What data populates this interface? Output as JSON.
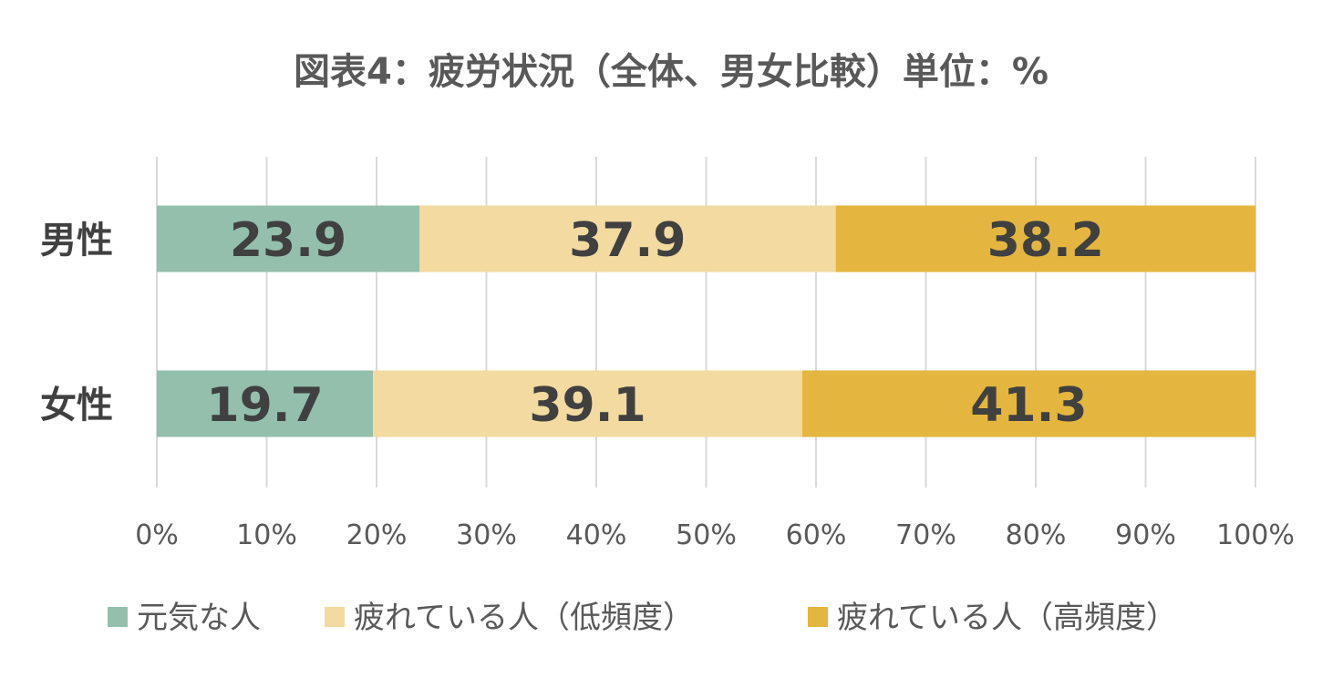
{
  "chart_data": {
    "type": "bar",
    "orientation": "horizontal",
    "stacked": "percent",
    "title": "図表4：疲労状況（全体、男女比較）単位：%",
    "categories": [
      "男性",
      "女性"
    ],
    "series": [
      {
        "name": "元気な人",
        "values": [
          23.9,
          19.7
        ],
        "color": "#93bfac"
      },
      {
        "name": "疲れている人（低頻度）",
        "values": [
          37.9,
          39.1
        ],
        "color": "#f2daa0"
      },
      {
        "name": "疲れている人（高頻度）",
        "values": [
          38.2,
          41.3
        ],
        "color": "#e4b63f"
      }
    ],
    "xlim": [
      0,
      100
    ],
    "xticks": [
      0,
      10,
      20,
      30,
      40,
      50,
      60,
      70,
      80,
      90,
      100
    ],
    "xtick_labels": [
      "0%",
      "10%",
      "20%",
      "30%",
      "40%",
      "50%",
      "60%",
      "70%",
      "80%",
      "90%",
      "100%"
    ],
    "data_labels": [
      [
        "23.9",
        "19.7"
      ],
      [
        "37.9",
        "39.1"
      ],
      [
        "38.2",
        "41.3"
      ]
    ],
    "grid": true,
    "legend": "bottom",
    "xlabel": "",
    "ylabel": ""
  }
}
